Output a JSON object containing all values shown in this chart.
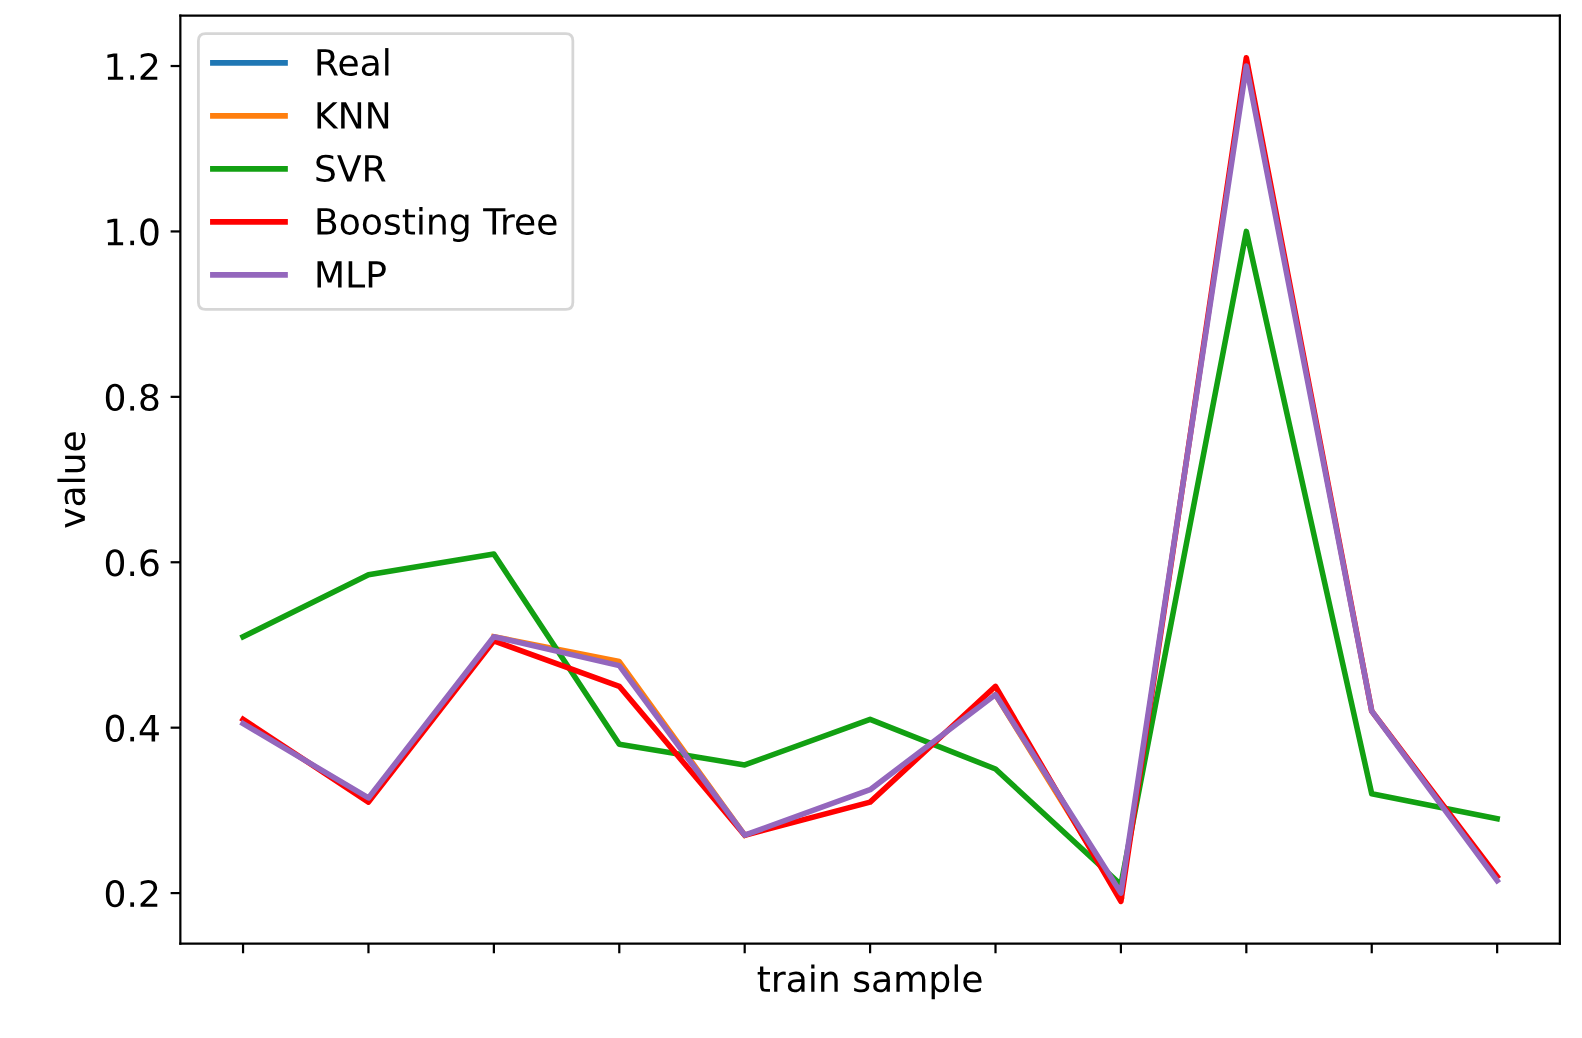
{
  "chart_data": {
    "type": "line",
    "xlabel": "train sample",
    "ylabel": "value",
    "categories": [
      null,
      null,
      null,
      null,
      null,
      null,
      null,
      null,
      null,
      null,
      null
    ],
    "series": [
      {
        "name": "Real",
        "color": "#1f77b4",
        "values": [
          null,
          null,
          null,
          null,
          null,
          null,
          null,
          null,
          null,
          null,
          null
        ]
      },
      {
        "name": "KNN",
        "color": "#ff7f0e",
        "values": [
          null,
          null,
          0.51,
          0.48,
          0.27,
          null,
          0.44,
          0.195,
          null,
          null,
          null
        ]
      },
      {
        "name": "SVR",
        "color": "#12a012",
        "values": [
          0.51,
          0.585,
          0.61,
          0.38,
          0.355,
          0.41,
          0.35,
          0.21,
          1.0,
          0.32,
          0.29
        ]
      },
      {
        "name": "Boosting Tree",
        "color": "#ff0000",
        "values": [
          0.41,
          0.31,
          0.505,
          0.45,
          0.27,
          0.31,
          0.45,
          0.19,
          1.21,
          0.42,
          0.22
        ]
      },
      {
        "name": "MLP",
        "color": "#9467bd",
        "values": [
          0.405,
          0.315,
          0.51,
          0.475,
          0.27,
          0.325,
          0.44,
          0.2,
          1.2,
          0.42,
          0.215
        ]
      }
    ],
    "ylim": [
      0.139,
      1.261
    ],
    "yticks": [
      0.2,
      0.4,
      0.6,
      0.8,
      {
        "value": 1.0,
        "label": "1.0"
      },
      1.2
    ],
    "grid": false,
    "legend": "top left",
    "tick_labels": "y",
    "line_style": "solid",
    "marker": "none"
  }
}
